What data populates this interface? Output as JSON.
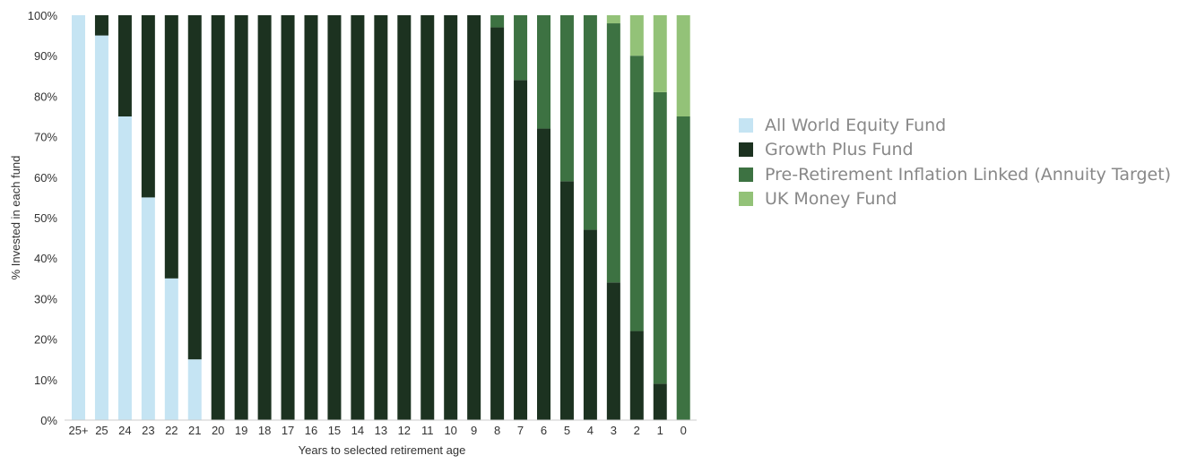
{
  "chart_data": {
    "type": "bar",
    "stacked": true,
    "title": "",
    "xlabel": "Years to selected retirement age",
    "ylabel": "% Invested in each fund",
    "ylim": [
      0,
      100
    ],
    "yticks": [
      "0%",
      "10%",
      "20%",
      "30%",
      "40%",
      "50%",
      "60%",
      "70%",
      "80%",
      "90%",
      "100%"
    ],
    "grid": false,
    "legend_position": "right",
    "categories": [
      "25+",
      "25",
      "24",
      "23",
      "22",
      "21",
      "20",
      "19",
      "18",
      "17",
      "16",
      "15",
      "14",
      "13",
      "12",
      "11",
      "10",
      "9",
      "8",
      "7",
      "6",
      "5",
      "4",
      "3",
      "2",
      "1",
      "0"
    ],
    "series": [
      {
        "name": "All World Equity Fund",
        "color": "#c5e4f3",
        "values": [
          100,
          95,
          75,
          55,
          35,
          15,
          0,
          0,
          0,
          0,
          0,
          0,
          0,
          0,
          0,
          0,
          0,
          0,
          0,
          0,
          0,
          0,
          0,
          0,
          0,
          0,
          0
        ]
      },
      {
        "name": "Growth Plus Fund",
        "color": "#1c3220",
        "values": [
          0,
          5,
          25,
          45,
          65,
          85,
          100,
          100,
          100,
          100,
          100,
          100,
          100,
          100,
          100,
          100,
          100,
          100,
          97,
          84,
          72,
          59,
          47,
          34,
          22,
          9,
          0
        ]
      },
      {
        "name": "Pre-Retirement Inflation Linked (Annuity Target)",
        "color": "#3d7242",
        "values": [
          0,
          0,
          0,
          0,
          0,
          0,
          0,
          0,
          0,
          0,
          0,
          0,
          0,
          0,
          0,
          0,
          0,
          0,
          3,
          16,
          28,
          41,
          53,
          64,
          68,
          72,
          75
        ]
      },
      {
        "name": "UK Money Fund",
        "color": "#93c278",
        "values": [
          0,
          0,
          0,
          0,
          0,
          0,
          0,
          0,
          0,
          0,
          0,
          0,
          0,
          0,
          0,
          0,
          0,
          0,
          0,
          0,
          0,
          0,
          0,
          2,
          10,
          19,
          25
        ]
      }
    ]
  }
}
